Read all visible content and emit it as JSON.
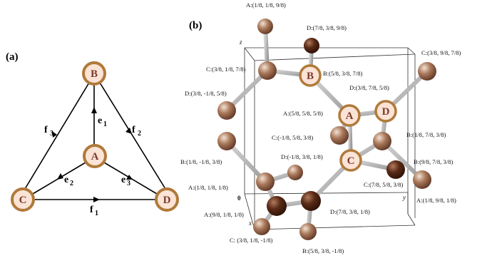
{
  "panel_a": {
    "label": "(a)",
    "nodes": {
      "A": "A",
      "B": "B",
      "C": "C",
      "D": "D"
    },
    "edges": {
      "f1": {
        "base": "f",
        "sub": "1"
      },
      "f2": {
        "base": "f",
        "sub": "2"
      },
      "f3": {
        "base": "f",
        "sub": "3"
      },
      "e1": {
        "base": "e",
        "sub": "1"
      },
      "e2": {
        "base": "e",
        "sub": "2"
      },
      "e3": {
        "base": "e",
        "sub": "3"
      }
    }
  },
  "panel_b": {
    "label": "(b)",
    "axes": {
      "x": "x",
      "y": "y",
      "z": "z",
      "origin": "0"
    },
    "highlighted": {
      "A": "A",
      "B": "B",
      "C": "C",
      "D": "D"
    },
    "coord_labels": {
      "a_top": "A:(1/8, 1/8, 9/8)",
      "d_top": "D:(7/8, 3/8, 9/8)",
      "c_378": "C:(3/8, 9/8, 7/8)",
      "c_318": "C:(3/8, 1/8, 7/8)",
      "b_highlight": "B:(5/8, 3/8, 7/8)",
      "d_highlight": "D:(3/8, 7/8, 5/8)",
      "d_left": "D:(3/8, -1/8, 5/8)",
      "a_highlight": "A:(5/8, 5/8, 5/8)",
      "c_left": "C:(-1/8, 5/8, 3/8)",
      "b_right": "B:(1/8, 7/8, 3/8)",
      "d_center": "D:(-1/8, 3/8, 1/8)",
      "b_left": "B:(1/8, -1/8, 3/8)",
      "b_far_right": "B:(9/8, 7/8, 3/8)",
      "c_highlight": "C:(7/8, 5/8, 3/8)",
      "a_left": "A:(1/8, 1/8, 1/8)",
      "a_right": "A:(1/8, 9/8, 1/8)",
      "d_bottom": "D:(7/8, 3/8, 1/8)",
      "a_bottom": "A:(9/8, 1/8, 1/8)",
      "c_bottom": "C: (3/8, 1/8, -1/8)",
      "b_bottom": "B:(5/8, 3/8, -1/8)"
    }
  }
}
